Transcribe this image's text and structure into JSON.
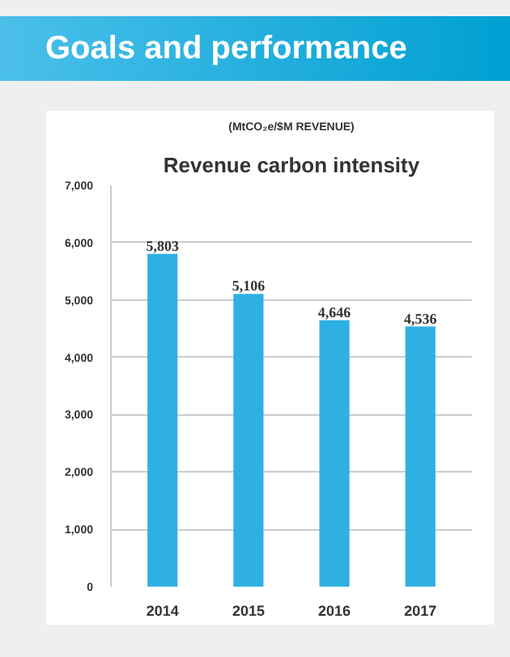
{
  "chart_data": {
    "type": "bar",
    "title": "Revenue carbon intensity",
    "subtitle": "(MtCO₂e/$M REVENUE)",
    "annotations": [
      "Goals and performance"
    ],
    "categories": [
      "2014",
      "2015",
      "2016",
      "2017"
    ],
    "values": [
      5803,
      5106,
      4646,
      4536
    ],
    "color": "#2eb0e4",
    "value_labels": [
      "5,803",
      "5,106",
      "4,646",
      "4,536"
    ],
    "ylim": [
      0,
      7000
    ],
    "yticks": [
      {
        "value": 0,
        "label": "0"
      },
      {
        "value": 1000,
        "label": "1,000"
      },
      {
        "value": 2000,
        "label": "2,000"
      },
      {
        "value": 3000,
        "label": "3,000"
      },
      {
        "value": 4000,
        "label": "4,000"
      },
      {
        "value": 5000,
        "label": "5,000"
      },
      {
        "value": 6000,
        "label": "6,000"
      },
      {
        "value": 7000,
        "label": "7,000"
      }
    ],
    "grid": "y"
  }
}
